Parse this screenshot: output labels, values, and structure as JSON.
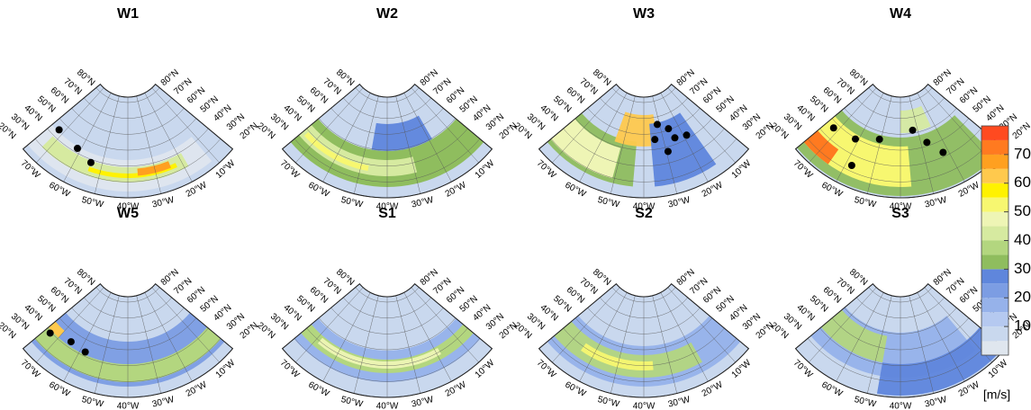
{
  "panels": [
    {
      "title": "W1"
    },
    {
      "title": "W2"
    },
    {
      "title": "W3"
    },
    {
      "title": "W4"
    },
    {
      "title": "W5"
    },
    {
      "title": "S1"
    },
    {
      "title": "S2"
    },
    {
      "title": "S3"
    }
  ],
  "lat_labels": [
    "80°N",
    "70°N",
    "60°N",
    "50°N",
    "40°N",
    "30°N",
    "20°N"
  ],
  "lon_labels": [
    "70°W",
    "60°W",
    "50°W",
    "40°W",
    "30°W",
    "20°W",
    "10°W"
  ],
  "colorbar": {
    "range": [
      0,
      80
    ],
    "ticks": [
      10,
      20,
      30,
      40,
      50,
      60,
      70
    ],
    "unit": "[m/s]",
    "colors": [
      "#dfe6ee",
      "#c9d8ee",
      "#b5c9f0",
      "#96b2ea",
      "#7c9de3",
      "#5f86dc",
      "#8fbd5e",
      "#b3d67f",
      "#d6eaa0",
      "#eef5b5",
      "#f7f770",
      "#fff200",
      "#ffc94d",
      "#ffa020",
      "#ff7a20",
      "#ff4a20"
    ]
  }
}
